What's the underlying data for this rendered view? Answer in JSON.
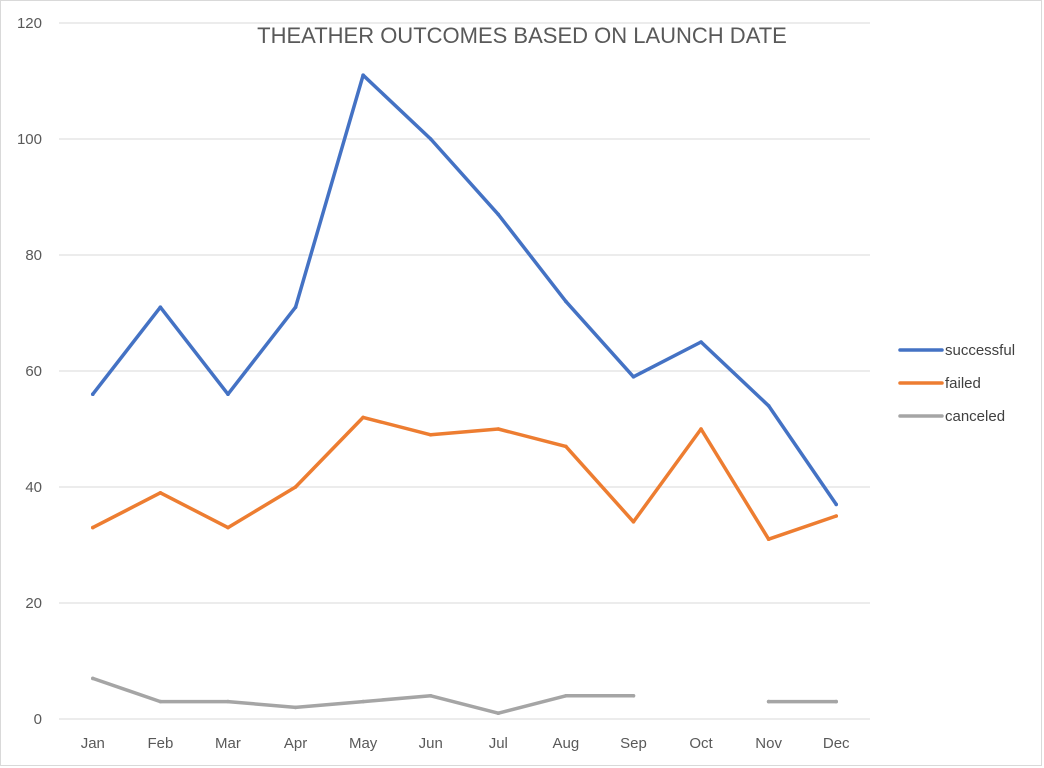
{
  "chart_data": {
    "type": "line",
    "title": "THEATHER OUTCOMES BASED ON LAUNCH DATE",
    "xlabel": "",
    "ylabel": "",
    "categories": [
      "Jan",
      "Feb",
      "Mar",
      "Apr",
      "May",
      "Jun",
      "Jul",
      "Aug",
      "Sep",
      "Oct",
      "Nov",
      "Dec"
    ],
    "ylim": [
      0,
      120
    ],
    "yticks": [
      "0",
      "20",
      "40",
      "60",
      "80",
      "100",
      "120"
    ],
    "grid": true,
    "legend_position": "right",
    "series": [
      {
        "name": "successful",
        "color": "#4472C4",
        "values": [
          56,
          71,
          56,
          71,
          111,
          100,
          87,
          72,
          59,
          65,
          54,
          37
        ]
      },
      {
        "name": "failed",
        "color": "#ED7D31",
        "values": [
          33,
          39,
          33,
          40,
          52,
          49,
          50,
          47,
          34,
          50,
          31,
          35
        ]
      },
      {
        "name": "canceled",
        "color": "#A5A5A5",
        "values": [
          7,
          3,
          3,
          2,
          3,
          4,
          1,
          4,
          4,
          null,
          3,
          3
        ]
      }
    ]
  }
}
